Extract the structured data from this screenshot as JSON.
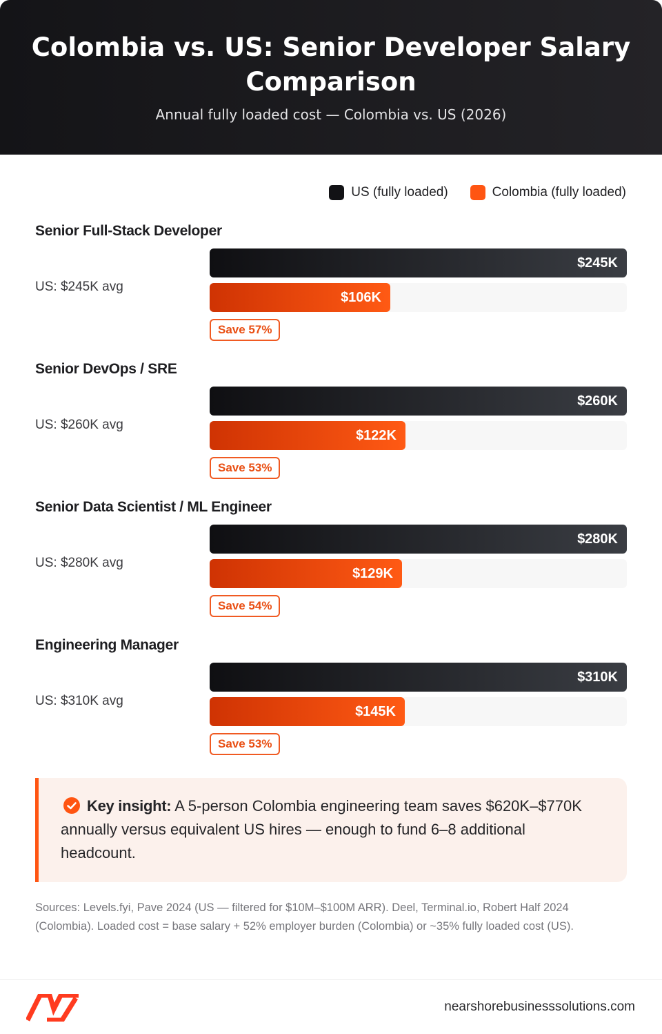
{
  "header": {
    "title": "Colombia vs. US: Senior Developer Salary Comparison",
    "subtitle": "Annual fully loaded cost — Colombia vs. US (2026)"
  },
  "legend": {
    "us": "US (fully loaded)",
    "colombia": "Colombia (fully loaded)"
  },
  "chart_data": {
    "type": "bar",
    "orientation": "horizontal",
    "title": "Colombia vs. US: Senior Developer Salary Comparison",
    "subtitle": "Annual fully loaded cost — Colombia vs. US (2026)",
    "categories": [
      "Senior Full-Stack Developer",
      "Senior DevOps / SRE",
      "Senior Data Scientist / ML Engineer",
      "Engineering Manager"
    ],
    "series": [
      {
        "name": "US (fully loaded)",
        "values": [
          245,
          260,
          280,
          310
        ],
        "color": "#121215"
      },
      {
        "name": "Colombia (fully loaded)",
        "values": [
          106,
          122,
          129,
          145
        ],
        "color": "#ff5512"
      }
    ],
    "units": "$K",
    "legend_position": "top-right",
    "grid": false
  },
  "roles": [
    {
      "title": "Senior Full-Stack Developer",
      "avg_label": "US: $245K avg",
      "us_label": "$245K",
      "co_label": "$106K",
      "save_label": "Save 57%"
    },
    {
      "title": "Senior DevOps / SRE",
      "avg_label": "US: $260K avg",
      "us_label": "$260K",
      "co_label": "$122K",
      "save_label": "Save 53%"
    },
    {
      "title": "Senior Data Scientist / ML Engineer",
      "avg_label": "US: $280K avg",
      "us_label": "$280K",
      "co_label": "$129K",
      "save_label": "Save 54%"
    },
    {
      "title": "Engineering Manager",
      "avg_label": "US: $310K avg",
      "us_label": "$310K",
      "co_label": "$145K",
      "save_label": "Save 53%"
    }
  ],
  "insight": {
    "lead": "Key insight:",
    "text": " A 5-person Colombia engineering team saves $620K–$770K annually versus equivalent US hires — enough to fund 6–8 additional headcount."
  },
  "sources": "Sources: Levels.fyi, Pave 2024 (US — filtered for $10M–$100M ARR). Deel, Terminal.io, Robert Half 2024 (Colombia). Loaded cost = base salary + 52% employer burden (Colombia) or ~35% fully loaded cost (US).",
  "footer": {
    "site": "nearshorebusinesssolutions.com"
  },
  "colors": {
    "accent": "#ff5512",
    "dark": "#121215"
  }
}
